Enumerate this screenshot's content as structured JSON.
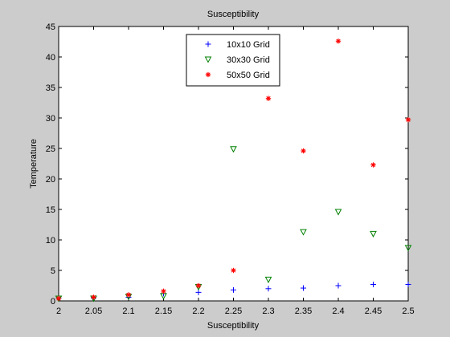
{
  "chart_data": {
    "type": "scatter",
    "title": "Susceptibility",
    "xlabel": "Susceptibility",
    "ylabel": "Temperature",
    "xlim": [
      2,
      2.5
    ],
    "ylim": [
      0,
      45
    ],
    "xticks": [
      2,
      2.05,
      2.1,
      2.15,
      2.2,
      2.25,
      2.3,
      2.35,
      2.4,
      2.45,
      2.5
    ],
    "xtick_labels": [
      "2",
      "2.05",
      "2.1",
      "2.15",
      "2.2",
      "2.25",
      "2.3",
      "2.35",
      "2.4",
      "2.45",
      "2.5"
    ],
    "yticks": [
      0,
      5,
      10,
      15,
      20,
      25,
      30,
      35,
      40,
      45
    ],
    "ytick_labels": [
      "0",
      "5",
      "10",
      "15",
      "20",
      "25",
      "30",
      "35",
      "40",
      "45"
    ],
    "grid": false,
    "legend_position": "top-center",
    "x": [
      2,
      2.05,
      2.1,
      2.15,
      2.2,
      2.25,
      2.3,
      2.35,
      2.4,
      2.45,
      2.5
    ],
    "series": [
      {
        "name": "10x10 Grid",
        "marker": "plus",
        "color": "#0000ff",
        "values": [
          0.4,
          0.5,
          0.6,
          1.2,
          1.4,
          1.8,
          2.0,
          2.1,
          2.5,
          2.7,
          2.7
        ]
      },
      {
        "name": "30x30 Grid",
        "marker": "triangle-down",
        "color": "#008000",
        "values": [
          0.4,
          0.4,
          0.7,
          0.8,
          2.3,
          24.9,
          3.5,
          11.3,
          14.6,
          11.0,
          8.7
        ]
      },
      {
        "name": "50x50 Grid",
        "marker": "asterisk",
        "color": "#ff0000",
        "values": [
          0.4,
          0.6,
          1.0,
          1.6,
          2.5,
          5.0,
          33.2,
          24.6,
          42.6,
          22.3,
          29.7
        ]
      }
    ]
  }
}
